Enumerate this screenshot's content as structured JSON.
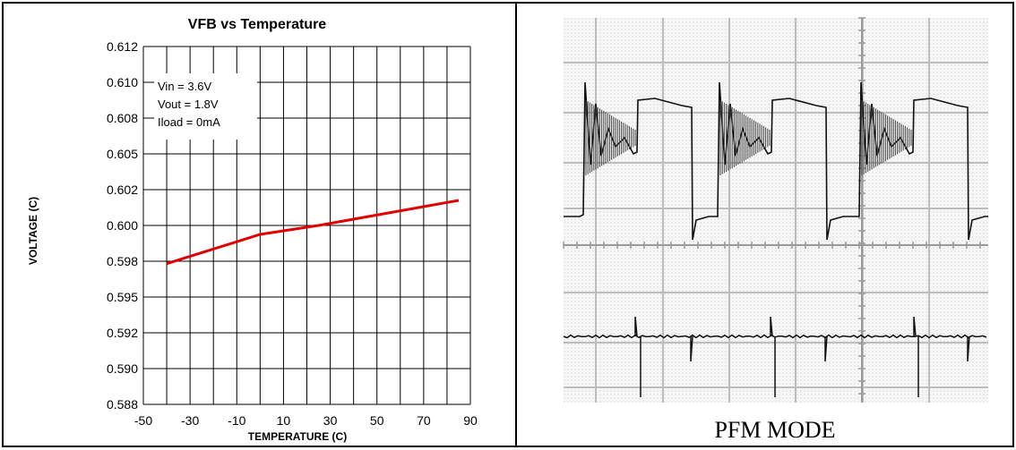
{
  "chart_data": {
    "type": "line",
    "title": "VFB vs Temperature",
    "xlabel": "TEMPERATURE (C)",
    "ylabel": "VOLTAGE (C)",
    "x_ticks": [
      "-50",
      "-30",
      "-10",
      "10",
      "30",
      "50",
      "70",
      "90"
    ],
    "y_ticks": [
      "0.612",
      "0.610",
      "0.608",
      "0.605",
      "0.602",
      "0.600",
      "0.598",
      "0.595",
      "0.592",
      "0.590",
      "0.588"
    ],
    "grid": true,
    "annotation": [
      "Vin = 3.6V",
      "Vout = 1.8V",
      "Iload = 0mA"
    ],
    "series": [
      {
        "color": "#e00000",
        "x": [
          -40,
          0,
          25,
          85
        ],
        "y": [
          0.5978,
          0.5995,
          0.6,
          0.6014
        ]
      }
    ]
  },
  "scope": {
    "caption": "PFM MODE"
  }
}
